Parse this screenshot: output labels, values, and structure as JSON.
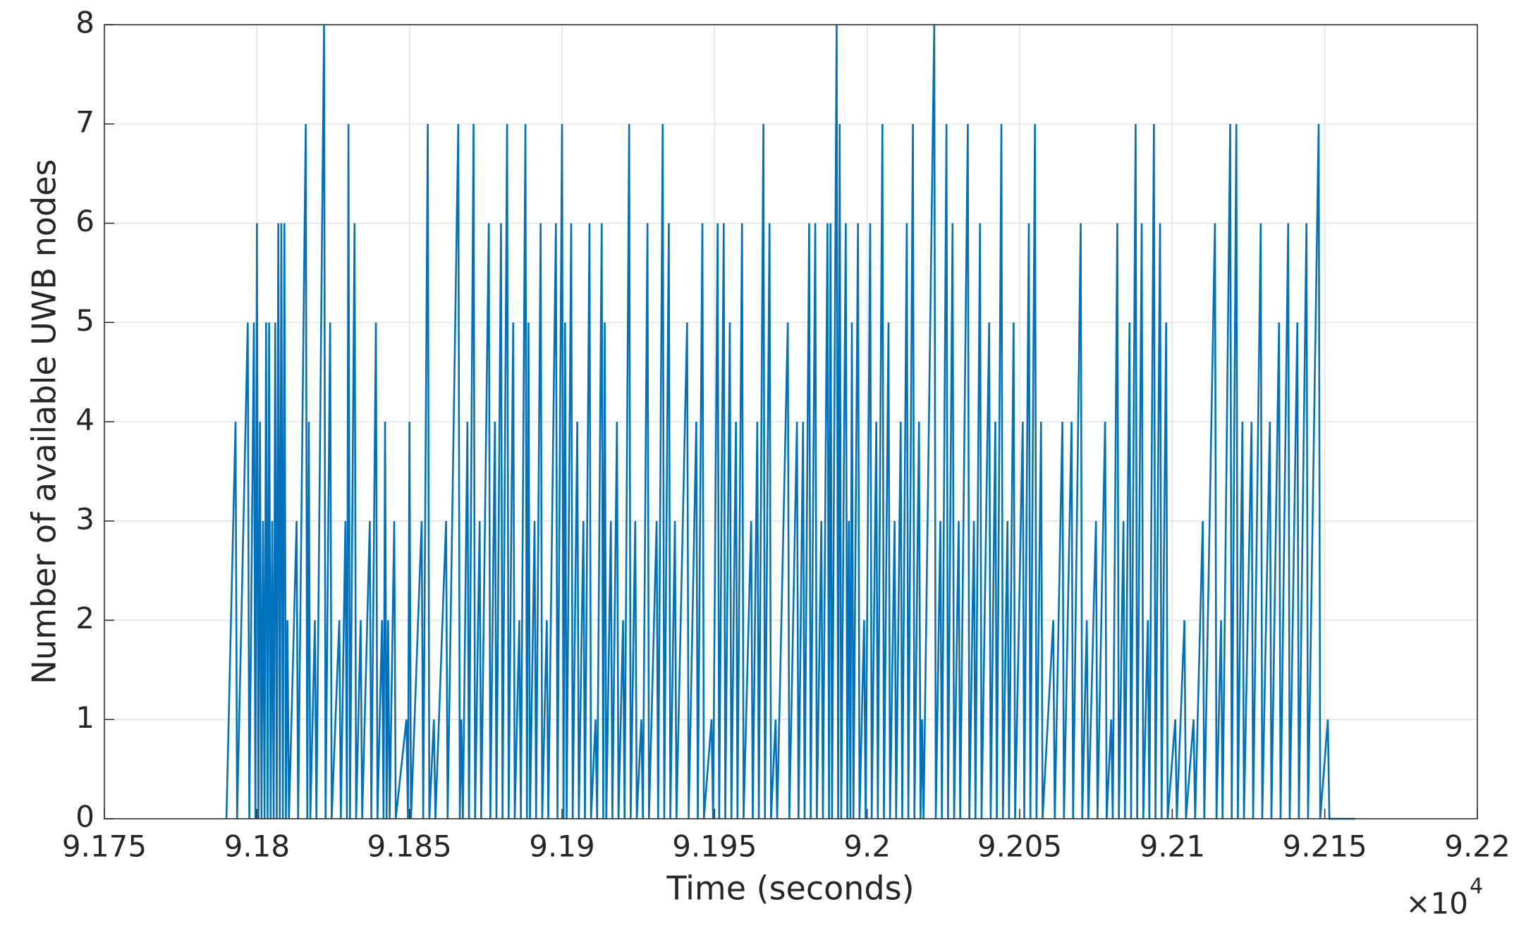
{
  "chart_data": {
    "type": "line",
    "xlabel": "Time (seconds)",
    "ylabel": "Number of available UWB nodes",
    "x_multiplier": "×10",
    "x_multiplier_exponent": "4",
    "xlim": [
      91750,
      92200
    ],
    "xticks": [
      {
        "value": 91750,
        "label": "9.175"
      },
      {
        "value": 91800,
        "label": "9.18"
      },
      {
        "value": 91850,
        "label": "9.185"
      },
      {
        "value": 91900,
        "label": "9.19"
      },
      {
        "value": 91950,
        "label": "9.195"
      },
      {
        "value": 92000,
        "label": "9.2"
      },
      {
        "value": 92050,
        "label": "9.205"
      },
      {
        "value": 92100,
        "label": "9.21"
      },
      {
        "value": 92150,
        "label": "9.215"
      },
      {
        "value": 92200,
        "label": "9.22"
      }
    ],
    "ylim": [
      0,
      8
    ],
    "yticks": [
      0,
      1,
      2,
      3,
      4,
      5,
      6,
      7,
      8
    ],
    "grid": true,
    "x": [
      91790,
      91793,
      91793.5,
      91797,
      91797.5,
      91799,
      91799.5,
      91800,
      91800.5,
      91801,
      91801.5,
      91802,
      91802.5,
      91803,
      91803.5,
      91804,
      91804.5,
      91805,
      91805.5,
      91806,
      91806.5,
      91807,
      91807.5,
      91808,
      91808.5,
      91809,
      91809.5,
      91810,
      91810.5,
      91813,
      91813.5,
      91816,
      91816.5,
      91817,
      91817.5,
      91819,
      91819.5,
      91822,
      91822.5,
      91824,
      91824.5,
      91827,
      91827.5,
      91829,
      91829.5,
      91830,
      91830.5,
      91832,
      91832.5,
      91834,
      91834.5,
      91837,
      91837.5,
      91839,
      91839.5,
      91841,
      91841.5,
      91842,
      91842.5,
      91843,
      91843.5,
      91845,
      91845.5,
      91849,
      91849.5,
      91850,
      91850.5,
      91854,
      91854.5,
      91856,
      91856.5,
      91858,
      91858.5,
      91862,
      91862.5,
      91866,
      91866.5,
      91867,
      91867.5,
      91869,
      91869.5,
      91871,
      91871.5,
      91873,
      91873.5,
      91876,
      91876.5,
      91878,
      91878.5,
      91880,
      91880.5,
      91882,
      91882.5,
      91884,
      91884.5,
      91886,
      91886.5,
      91888,
      91888.5,
      91889,
      91889.5,
      91891,
      91891.5,
      91893,
      91893.5,
      91895,
      91895.5,
      91898,
      91898.5,
      91900,
      91900.5,
      91901,
      91901.5,
      91903,
      91903.5,
      91905,
      91905.5,
      91907,
      91907.5,
      91909,
      91909.5,
      91911,
      91911.5,
      91913,
      91913.5,
      91914,
      91914.5,
      91916,
      91916.5,
      91918,
      91918.5,
      91920,
      91920.5,
      91922,
      91922.5,
      91924,
      91924.5,
      91926,
      91926.5,
      91928,
      91928.5,
      91931,
      91931.5,
      91933,
      91933.5,
      91935,
      91935.5,
      91937,
      91937.5,
      91941,
      91941.5,
      91944,
      91944.5,
      91946,
      91946.5,
      91949,
      91949.5,
      91951,
      91951.5,
      91953,
      91953.5,
      91955,
      91955.5,
      91957,
      91957.5,
      91959,
      91959.5,
      91962,
      91962.5,
      91964,
      91964.5,
      91966,
      91966.5,
      91968,
      91968.5,
      91970,
      91970.5,
      91974,
      91974.5,
      91977,
      91977.5,
      91979,
      91979.5,
      91981,
      91981.5,
      91983,
      91983.5,
      91985,
      91985.5,
      91987,
      91987.5,
      91988,
      91988.5,
      91990,
      91990.5,
      91991,
      91991.5,
      91993,
      91993.5,
      91994,
      91994.5,
      91995,
      91995.5,
      91997,
      91997.5,
      91999,
      91999.5,
      92001,
      92001.5,
      92003,
      92003.5,
      92005,
      92005.5,
      92007,
      92007.5,
      92009,
      92009.5,
      92011,
      92011.5,
      92013,
      92013.5,
      92015,
      92015.5,
      92017,
      92017.5,
      92018,
      92018.5,
      92022,
      92022.5,
      92024,
      92024.5,
      92026,
      92026.5,
      92028,
      92028.5,
      92030,
      92030.5,
      92033,
      92033.5,
      92035,
      92035.5,
      92037,
      92037.5,
      92040,
      92040.5,
      92042,
      92042.5,
      92044,
      92044.5,
      92046,
      92046.5,
      92048,
      92048.5,
      92051,
      92051.5,
      92053,
      92053.5,
      92055,
      92055.5,
      92057,
      92057.5,
      92061,
      92061.5,
      92064,
      92064.5,
      92067,
      92067.5,
      92070,
      92070.5,
      92072,
      92072.5,
      92075,
      92075.5,
      92078,
      92078.5,
      92080,
      92080.5,
      92082,
      92082.5,
      92084,
      92084.5,
      92086,
      92086.5,
      92088,
      92088.5,
      92090,
      92090.5,
      92092,
      92092.5,
      92094,
      92094.5,
      92096,
      92096.5,
      92098,
      92098.5,
      92101,
      92101.5,
      92104,
      92104.5,
      92107,
      92107.5,
      92110,
      92110.5,
      92114,
      92114.5,
      92116,
      92116.5,
      92119,
      92119.5,
      92121,
      92121.5,
      92123,
      92123.5,
      92126,
      92126.5,
      92129,
      92129.5,
      92132,
      92132.5,
      92135,
      92135.5,
      92138,
      92138.5,
      92141,
      92141.5,
      92144,
      92144.5,
      92148,
      92148.5,
      92151,
      92151.5,
      92160
    ],
    "series": [
      {
        "color": "#0072bd",
        "values": [
          0,
          4,
          0,
          5,
          0,
          5,
          0,
          6,
          0,
          4,
          0,
          3,
          0,
          5,
          0,
          5,
          0,
          3,
          0,
          5,
          0,
          6,
          0,
          6,
          0,
          6,
          0,
          2,
          0,
          3,
          0,
          7,
          0,
          4,
          0,
          2,
          0,
          8,
          0,
          5,
          0,
          2,
          0,
          3,
          0,
          7,
          0,
          6,
          0,
          2,
          0,
          3,
          0,
          5,
          0,
          2,
          0,
          4,
          0,
          2,
          0,
          3,
          0,
          1,
          0,
          4,
          0,
          3,
          0,
          7,
          0,
          1,
          0,
          3,
          0,
          7,
          0,
          1,
          0,
          4,
          0,
          7,
          0,
          3,
          0,
          6,
          0,
          4,
          0,
          6,
          0,
          7,
          0,
          5,
          0,
          2,
          0,
          7,
          0,
          5,
          0,
          3,
          0,
          6,
          0,
          2,
          0,
          6,
          0,
          7,
          0,
          5,
          0,
          6,
          0,
          4,
          0,
          3,
          0,
          6,
          0,
          1,
          0,
          6,
          0,
          5,
          0,
          3,
          0,
          4,
          0,
          2,
          0,
          7,
          0,
          3,
          0,
          1,
          0,
          6,
          0,
          3,
          0,
          7,
          0,
          6,
          0,
          3,
          0,
          5,
          0,
          4,
          0,
          6,
          0,
          1,
          0,
          6,
          0,
          6,
          0,
          5,
          0,
          4,
          0,
          6,
          0,
          3,
          0,
          4,
          0,
          7,
          0,
          6,
          0,
          1,
          0,
          5,
          0,
          4,
          0,
          4,
          0,
          6,
          0,
          6,
          0,
          3,
          0,
          6,
          0,
          6,
          0,
          8,
          0,
          7,
          0,
          6,
          0,
          3,
          0,
          5,
          0,
          6,
          0,
          2,
          0,
          6,
          0,
          4,
          0,
          7,
          0,
          5,
          0,
          3,
          0,
          4,
          0,
          6,
          0,
          7,
          0,
          4,
          0,
          1,
          0,
          8,
          0,
          3,
          0,
          7,
          0,
          6,
          0,
          3,
          0,
          7,
          0,
          3,
          0,
          6,
          0,
          5,
          0,
          4,
          0,
          7,
          0,
          3,
          0,
          5,
          0,
          4,
          0,
          6,
          0,
          7,
          0,
          4,
          0,
          2,
          0,
          4,
          0,
          4,
          0,
          6,
          0,
          2,
          0,
          3,
          0,
          4,
          0,
          1,
          0,
          6,
          0,
          3,
          0,
          5,
          0,
          7,
          0,
          6,
          0,
          2,
          0,
          7,
          0,
          6,
          0,
          5,
          0,
          1,
          0,
          2,
          0,
          1,
          0,
          3,
          0,
          6,
          0,
          2,
          0,
          7,
          0,
          7,
          0,
          4,
          0,
          4,
          0,
          6,
          0,
          4,
          0,
          5,
          0,
          6,
          0,
          5,
          0,
          6,
          0,
          7,
          0,
          1,
          0,
          0
        ]
      }
    ]
  }
}
